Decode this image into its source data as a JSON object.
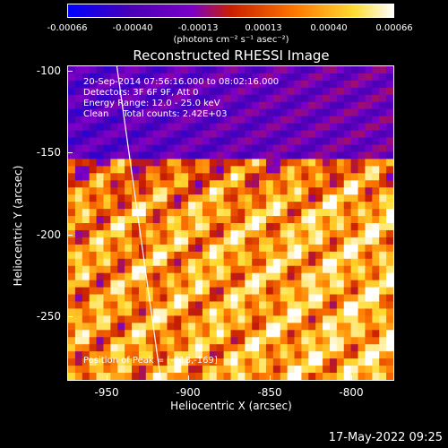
{
  "colorbar": {
    "tick_labels": [
      "-0.00066",
      "-0.00040",
      "-0.00013",
      "0.00013",
      "0.00040",
      "0.00066"
    ],
    "units": "(photons cm⁻² s⁻¹ asec⁻²)",
    "colors": [
      "#0000ff",
      "#4b00b4",
      "#7a00c8",
      "#c81e00",
      "#ff7800",
      "#ffdc32",
      "#ffffff"
    ]
  },
  "title": "Reconstructed RHESSI Image",
  "info": {
    "time": "20-Sep-2014 07:56:16.000 to 08:02:16.000",
    "detectors": "Detectors: 3F 6F 9F, Att 0",
    "energy": "Energy Range: 12.0 - 25.0 keV",
    "clean": "Clean     Total counts: 2.42E+03"
  },
  "peak": "Position of Peak = [-918,-169]",
  "axes": {
    "xlabel": "Heliocentric X (arcsec)",
    "ylabel": "Heliocentric Y (arcsec)",
    "xlim": [
      -972,
      -772
    ],
    "ylim": [
      -290,
      -97
    ],
    "x_ticks": [
      "-950",
      "-900",
      "-850",
      "-800"
    ],
    "x_tick_values": [
      -950,
      -900,
      -850,
      -800
    ],
    "y_ticks": [
      "-100",
      "-150",
      "-200",
      "-250"
    ],
    "y_tick_values": [
      -100,
      -150,
      -200,
      -250
    ]
  },
  "limb_line": {
    "x": [
      -942,
      -915
    ],
    "y": [
      -97,
      -290
    ]
  },
  "timestamp": "17-May-2022 09:25"
}
